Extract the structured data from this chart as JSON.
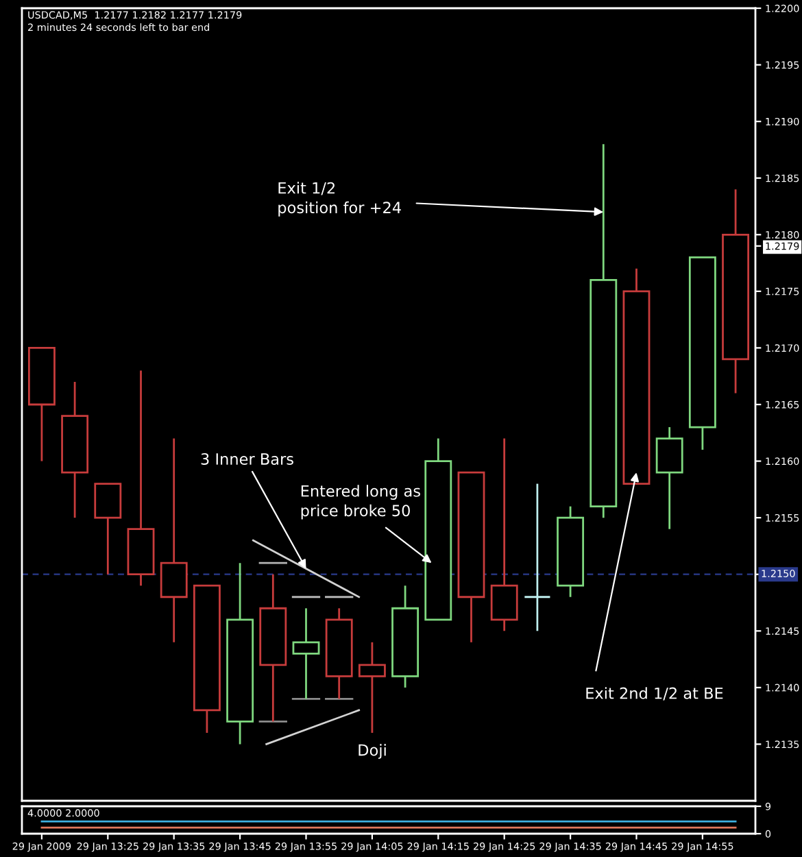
{
  "chart_data": [
    {
      "type": "candlestick",
      "title": "USDCAD,M5  1.2177 1.2182 1.2177 1.2179",
      "subtitle": "2 minutes 24 seconds left to bar end",
      "x": [
        "2009-01-29T13:15",
        "2009-01-29T13:20",
        "2009-01-29T13:25",
        "2009-01-29T13:30",
        "2009-01-29T13:35",
        "2009-01-29T13:40",
        "2009-01-29T13:45",
        "2009-01-29T13:50",
        "2009-01-29T13:55",
        "2009-01-29T14:00",
        "2009-01-29T14:05",
        "2009-01-29T14:10",
        "2009-01-29T14:15",
        "2009-01-29T14:20",
        "2009-01-29T14:25",
        "2009-01-29T14:30",
        "2009-01-29T14:35",
        "2009-01-29T14:40",
        "2009-01-29T14:45",
        "2009-01-29T14:50",
        "2009-01-29T14:55",
        "2009-01-29T15:00"
      ],
      "ohlc": [
        [
          1.217,
          1.217,
          1.216,
          1.2165
        ],
        [
          1.2164,
          1.2167,
          1.2155,
          1.2159
        ],
        [
          1.2158,
          1.2158,
          1.215,
          1.2155
        ],
        [
          1.2154,
          1.2168,
          1.2149,
          1.215
        ],
        [
          1.2151,
          1.2162,
          1.2144,
          1.2148
        ],
        [
          1.2149,
          1.2149,
          1.2136,
          1.2138
        ],
        [
          1.2137,
          1.2151,
          1.2135,
          1.2146
        ],
        [
          1.2147,
          1.215,
          1.2137,
          1.2142
        ],
        [
          1.2143,
          1.2147,
          1.2139,
          1.2144
        ],
        [
          1.2146,
          1.2147,
          1.2139,
          1.2141
        ],
        [
          1.2142,
          1.2144,
          1.2136,
          1.2141
        ],
        [
          1.2141,
          1.2149,
          1.214,
          1.2147
        ],
        [
          1.2146,
          1.2162,
          1.2146,
          1.216
        ],
        [
          1.2159,
          1.2159,
          1.2144,
          1.2148
        ],
        [
          1.2149,
          1.2162,
          1.2145,
          1.2146
        ],
        [
          1.2148,
          1.2158,
          1.2145,
          1.2148
        ],
        [
          1.2149,
          1.2156,
          1.2148,
          1.2155
        ],
        [
          1.2156,
          1.2188,
          1.2155,
          1.2176
        ],
        [
          1.2175,
          1.2177,
          1.2158,
          1.2158
        ],
        [
          1.2159,
          1.2163,
          1.2154,
          1.2162
        ],
        [
          1.2163,
          1.2178,
          1.2161,
          1.2178
        ],
        [
          1.218,
          1.2184,
          1.2166,
          1.2169
        ]
      ],
      "colors": [
        "#c83c3c",
        "#c83c3c",
        "#c83c3c",
        "#c83c3c",
        "#c83c3c",
        "#c83c3c",
        "#7fd87f",
        "#c83c3c",
        "#7fd87f",
        "#c83c3c",
        "#c83c3c",
        "#7fd87f",
        "#7fd87f",
        "#c83c3c",
        "#c83c3c",
        "#bfeeee",
        "#7fd87f",
        "#7fd87f",
        "#c83c3c",
        "#7fd87f",
        "#7fd87f",
        "#c83c3c"
      ],
      "series": [
        {
          "type": "line",
          "color": "#b4b4b4",
          "x": [
            "2009-01-29T13:48",
            "2009-01-29T13:52"
          ],
          "values": [
            1.2151,
            1.2151
          ]
        },
        {
          "type": "line",
          "color": "#b4b4b4",
          "x": [
            "2009-01-29T13:53",
            "2009-01-29T13:57"
          ],
          "values": [
            1.2148,
            1.2148
          ]
        },
        {
          "type": "line",
          "color": "#b4b4b4",
          "x": [
            "2009-01-29T13:58",
            "2009-01-29T14:02"
          ],
          "values": [
            1.2148,
            1.2148
          ]
        },
        {
          "type": "line",
          "color": "#8c8c8c",
          "x": [
            "2009-01-29T13:48",
            "2009-01-29T13:52"
          ],
          "values": [
            1.2137,
            1.2137
          ]
        },
        {
          "type": "line",
          "color": "#8c8c8c",
          "x": [
            "2009-01-29T13:53",
            "2009-01-29T13:57"
          ],
          "values": [
            1.2139,
            1.2139
          ]
        },
        {
          "type": "line",
          "color": "#8c8c8c",
          "x": [
            "2009-01-29T13:58",
            "2009-01-29T14:02"
          ],
          "values": [
            1.2139,
            1.2139
          ]
        },
        {
          "type": "line",
          "color": "#d2d2d2",
          "x": [
            "2009-01-29T13:47",
            "2009-01-29T14:03"
          ],
          "values": [
            1.2153,
            1.2148
          ]
        },
        {
          "type": "line",
          "color": "#d2d2d2",
          "x": [
            "2009-01-29T13:49",
            "2009-01-29T14:03"
          ],
          "values": [
            1.2135,
            1.2138
          ]
        }
      ],
      "xlim": [
        "2009-01-29T13:12",
        "2009-01-29T15:03"
      ],
      "ylim": [
        1.213,
        1.22
      ],
      "yticks": [
        1.2135,
        {
          "value": 1.214,
          "label": "1.2140"
        },
        1.2145,
        {
          "value": 1.215,
          "label": null
        },
        1.2155,
        {
          "value": 1.216,
          "label": "1.2160"
        },
        1.2165,
        {
          "value": 1.217,
          "label": "1.2170"
        },
        1.2175,
        1.2179,
        {
          "value": 1.218,
          "label": "1.2180"
        },
        1.2185,
        {
          "value": 1.219,
          "label": "1.2190"
        },
        1.2195,
        {
          "value": 1.22,
          "label": "1.2200"
        }
      ],
      "tick_labels": "y",
      "ref_lines": [
        {
          "axis": "y",
          "value": 1.215,
          "label": "1.2150",
          "color": "#2a3a8c",
          "line_style": "dashed"
        }
      ],
      "annotations": [
        {
          "text": "Exit 1/2\nposition for +24",
          "x": "2009-01-29T14:40",
          "y": 1.2182
        },
        {
          "text": "3 Inner Bars",
          "x": "2009-01-29T13:55",
          "y": 1.21505
        },
        {
          "text": "Entered long as\nprice broke 50",
          "x": "2009-01-29T14:14",
          "y": 1.2151
        },
        {
          "text": "Exit 2nd 1/2 at BE",
          "x": "2009-01-29T14:45",
          "y": 1.2159
        },
        "Doji"
      ]
    },
    {
      "type": "line",
      "title": "4.0000 2.0000",
      "x": [
        "2009-01-29T13:15",
        "2009-01-29T13:20",
        "2009-01-29T13:25",
        "2009-01-29T13:30",
        "2009-01-29T13:35",
        "2009-01-29T13:40",
        "2009-01-29T13:45",
        "2009-01-29T13:50",
        "2009-01-29T13:55",
        "2009-01-29T14:00",
        "2009-01-29T14:05",
        "2009-01-29T14:10",
        "2009-01-29T14:15",
        "2009-01-29T14:20",
        "2009-01-29T14:25",
        "2009-01-29T14:30",
        "2009-01-29T14:35",
        "2009-01-29T14:40",
        "2009-01-29T14:45",
        "2009-01-29T14:50",
        "2009-01-29T14:55",
        "2009-01-29T15:00"
      ],
      "series": [
        {
          "color": "#3cb0e0",
          "values": [
            4,
            4,
            4,
            4,
            4,
            4,
            4,
            4,
            4,
            4,
            4,
            4,
            4,
            4,
            4,
            4,
            4,
            4,
            4,
            4,
            4,
            4
          ]
        },
        {
          "color": "#e0785c",
          "values": [
            2,
            2,
            2,
            2,
            2,
            2,
            2,
            2,
            2,
            2,
            2,
            2,
            2,
            2,
            2,
            2,
            2,
            2,
            2,
            2,
            2,
            2
          ]
        }
      ],
      "xlim": [
        "2009-01-29T13:12",
        "2009-01-29T15:03"
      ],
      "xticks": [
        {
          "value": "2009-01-29T13:15",
          "label": "29 Jan 2009"
        },
        {
          "value": "2009-01-29T13:25",
          "label": "29 Jan 13:25"
        },
        {
          "value": "2009-01-29T13:35",
          "label": "29 Jan 13:35"
        },
        {
          "value": "2009-01-29T13:45",
          "label": "29 Jan 13:45"
        },
        {
          "value": "2009-01-29T13:55",
          "label": "29 Jan 13:55"
        },
        {
          "value": "2009-01-29T14:05",
          "label": "29 Jan 14:05"
        },
        {
          "value": "2009-01-29T14:15",
          "label": "29 Jan 14:15"
        },
        {
          "value": "2009-01-29T14:25",
          "label": "29 Jan 14:25"
        },
        {
          "value": "2009-01-29T14:35",
          "label": "29 Jan 14:35"
        },
        {
          "value": "2009-01-29T14:45",
          "label": "29 Jan 14:45"
        },
        {
          "value": "2009-01-29T14:55",
          "label": "29 Jan 14:55"
        }
      ],
      "ylim": [
        0,
        9
      ],
      "yticks": [
        0,
        9
      ]
    }
  ]
}
